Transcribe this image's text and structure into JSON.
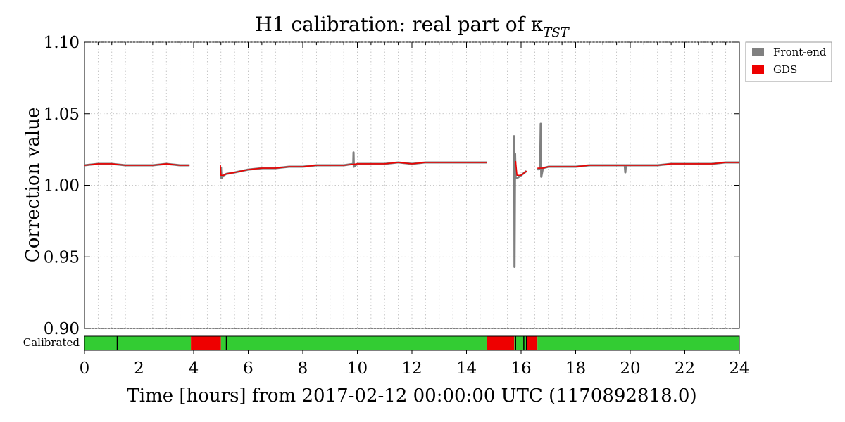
{
  "chart_data": {
    "type": "line",
    "title": "H1 calibration: real part of κ",
    "title_subscript": "TST",
    "xlabel": "Time [hours] from 2017-02-12 00:00:00 UTC (1170892818.0)",
    "ylabel": "Correction value",
    "xlim": [
      0,
      24
    ],
    "ylim": [
      0.9,
      1.1
    ],
    "xticks": [
      0,
      2,
      4,
      6,
      8,
      10,
      12,
      14,
      16,
      18,
      20,
      22,
      24
    ],
    "yticks": [
      "0.90",
      "0.95",
      "1.00",
      "1.05",
      "1.10"
    ],
    "grid": true,
    "legend_position": "outside-top-right",
    "series": [
      {
        "name": "Front-end",
        "color": "#808080",
        "points": [
          [
            0.0,
            1.014
          ],
          [
            0.5,
            1.015
          ],
          [
            1.0,
            1.015
          ],
          [
            1.5,
            1.014
          ],
          [
            2.0,
            1.014
          ],
          [
            2.5,
            1.014
          ],
          [
            3.0,
            1.015
          ],
          [
            3.5,
            1.014
          ],
          [
            3.85,
            1.014
          ],
          [
            null,
            null
          ],
          [
            5.0,
            1.013
          ],
          [
            5.02,
            1.005
          ],
          [
            5.1,
            1.007
          ],
          [
            5.2,
            1.008
          ],
          [
            5.5,
            1.009
          ],
          [
            6.0,
            1.011
          ],
          [
            6.5,
            1.012
          ],
          [
            7.0,
            1.012
          ],
          [
            7.5,
            1.013
          ],
          [
            8.0,
            1.013
          ],
          [
            8.5,
            1.014
          ],
          [
            9.0,
            1.014
          ],
          [
            9.5,
            1.014
          ],
          [
            9.85,
            1.015
          ],
          [
            9.86,
            1.023
          ],
          [
            9.87,
            1.013
          ],
          [
            10.0,
            1.015
          ],
          [
            10.5,
            1.015
          ],
          [
            11.0,
            1.015
          ],
          [
            11.5,
            1.016
          ],
          [
            12.0,
            1.015
          ],
          [
            12.5,
            1.016
          ],
          [
            13.0,
            1.016
          ],
          [
            13.5,
            1.016
          ],
          [
            14.0,
            1.016
          ],
          [
            14.5,
            1.016
          ],
          [
            14.75,
            1.016
          ],
          [
            null,
            null
          ],
          [
            15.75,
            1.035
          ],
          [
            15.76,
            0.943
          ],
          [
            15.78,
            1.022
          ],
          [
            15.8,
            1.006
          ],
          [
            15.85,
            1.005
          ],
          [
            16.0,
            1.007
          ],
          [
            16.2,
            1.01
          ],
          [
            null,
            null
          ],
          [
            16.6,
            1.011
          ],
          [
            16.7,
            1.012
          ],
          [
            16.72,
            1.043
          ],
          [
            16.74,
            1.006
          ],
          [
            16.8,
            1.012
          ],
          [
            17.0,
            1.013
          ],
          [
            17.5,
            1.013
          ],
          [
            18.0,
            1.013
          ],
          [
            18.5,
            1.014
          ],
          [
            19.0,
            1.014
          ],
          [
            19.5,
            1.014
          ],
          [
            19.8,
            1.014
          ],
          [
            19.82,
            1.009
          ],
          [
            19.84,
            1.014
          ],
          [
            20.0,
            1.014
          ],
          [
            20.5,
            1.014
          ],
          [
            21.0,
            1.014
          ],
          [
            21.5,
            1.015
          ],
          [
            22.0,
            1.015
          ],
          [
            22.5,
            1.015
          ],
          [
            23.0,
            1.015
          ],
          [
            23.5,
            1.016
          ],
          [
            24.0,
            1.016
          ]
        ]
      },
      {
        "name": "GDS",
        "color": "#ee0000",
        "points": [
          [
            0.0,
            1.014
          ],
          [
            0.5,
            1.015
          ],
          [
            1.0,
            1.015
          ],
          [
            1.5,
            1.014
          ],
          [
            2.0,
            1.014
          ],
          [
            2.5,
            1.014
          ],
          [
            3.0,
            1.015
          ],
          [
            3.5,
            1.014
          ],
          [
            3.85,
            1.014
          ],
          [
            null,
            null
          ],
          [
            4.98,
            1.014
          ],
          [
            5.0,
            1.007
          ],
          [
            5.1,
            1.007
          ],
          [
            5.2,
            1.008
          ],
          [
            5.5,
            1.009
          ],
          [
            6.0,
            1.011
          ],
          [
            6.5,
            1.012
          ],
          [
            7.0,
            1.012
          ],
          [
            7.5,
            1.013
          ],
          [
            8.0,
            1.013
          ],
          [
            8.5,
            1.014
          ],
          [
            9.0,
            1.014
          ],
          [
            9.5,
            1.014
          ],
          [
            10.0,
            1.015
          ],
          [
            10.5,
            1.015
          ],
          [
            11.0,
            1.015
          ],
          [
            11.5,
            1.016
          ],
          [
            12.0,
            1.015
          ],
          [
            12.5,
            1.016
          ],
          [
            13.0,
            1.016
          ],
          [
            13.5,
            1.016
          ],
          [
            14.0,
            1.016
          ],
          [
            14.5,
            1.016
          ],
          [
            14.75,
            1.016
          ],
          [
            null,
            null
          ],
          [
            15.8,
            1.017
          ],
          [
            15.85,
            1.007
          ],
          [
            16.0,
            1.007
          ],
          [
            16.2,
            1.01
          ],
          [
            null,
            null
          ],
          [
            16.6,
            1.012
          ],
          [
            16.8,
            1.012
          ],
          [
            17.0,
            1.013
          ],
          [
            17.5,
            1.013
          ],
          [
            18.0,
            1.013
          ],
          [
            18.5,
            1.014
          ],
          [
            19.0,
            1.014
          ],
          [
            19.5,
            1.014
          ],
          [
            20.0,
            1.014
          ],
          [
            20.5,
            1.014
          ],
          [
            21.0,
            1.014
          ],
          [
            21.5,
            1.015
          ],
          [
            22.0,
            1.015
          ],
          [
            22.5,
            1.015
          ],
          [
            23.0,
            1.015
          ],
          [
            23.5,
            1.016
          ],
          [
            24.0,
            1.016
          ]
        ]
      }
    ],
    "status_bar": {
      "label": "Calibrated",
      "colors": {
        "ok": "#33cc33",
        "bad": "#ee0000",
        "edge": "#000000"
      },
      "segments": [
        {
          "start": 0.0,
          "end": 3.9,
          "state": "ok"
        },
        {
          "start": 3.9,
          "end": 5.0,
          "state": "bad"
        },
        {
          "start": 5.0,
          "end": 14.75,
          "state": "ok"
        },
        {
          "start": 14.75,
          "end": 15.75,
          "state": "bad"
        },
        {
          "start": 15.75,
          "end": 16.2,
          "state": "ok"
        },
        {
          "start": 16.2,
          "end": 16.6,
          "state": "bad"
        },
        {
          "start": 16.6,
          "end": 24.0,
          "state": "ok"
        }
      ],
      "marks": [
        1.2,
        5.2,
        15.8,
        16.1,
        16.2
      ]
    }
  }
}
